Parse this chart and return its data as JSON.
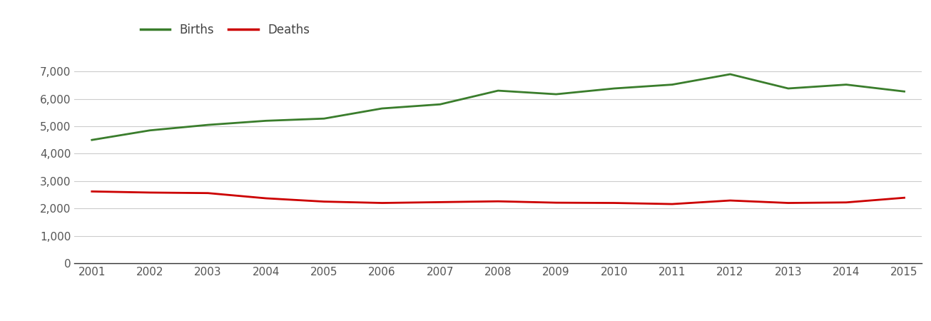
{
  "years": [
    2001,
    2002,
    2003,
    2004,
    2005,
    2006,
    2007,
    2008,
    2009,
    2010,
    2011,
    2012,
    2013,
    2014,
    2015
  ],
  "births": [
    4500,
    4850,
    5050,
    5200,
    5280,
    5650,
    5800,
    6300,
    6170,
    6380,
    6520,
    6900,
    6380,
    6520,
    6270
  ],
  "deaths": [
    2620,
    2580,
    2560,
    2370,
    2250,
    2200,
    2230,
    2260,
    2210,
    2200,
    2160,
    2290,
    2200,
    2220,
    2390
  ],
  "births_color": "#3a7d2c",
  "deaths_color": "#cc0000",
  "background_color": "#ffffff",
  "grid_color": "#cccccc",
  "line_width": 2.0,
  "ylim": [
    0,
    7500
  ],
  "yticks": [
    0,
    1000,
    2000,
    3000,
    4000,
    5000,
    6000,
    7000
  ],
  "legend_labels": [
    "Births",
    "Deaths"
  ],
  "tick_color": "#555555",
  "tick_fontsize": 11,
  "legend_fontsize": 12
}
